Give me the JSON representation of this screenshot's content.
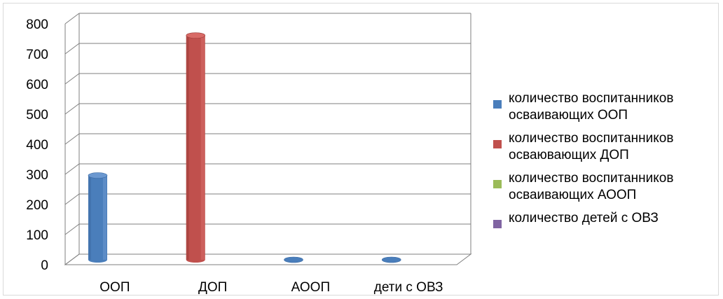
{
  "chart_data": {
    "type": "bar",
    "categories": [
      "ООП",
      "ДОП",
      "АООП",
      "дети с ОВЗ"
    ],
    "series": [
      {
        "name": "количество воспитанников\nосваивающих ООП",
        "color": "#4a7ebb",
        "values": [
          280,
          0,
          0,
          0
        ]
      },
      {
        "name": "количество воспитанников\nосваювающих ДОП",
        "color": "#c0504d",
        "values": [
          0,
          745,
          0,
          0
        ]
      },
      {
        "name": "количество воспитанников\nосваивающих АООП",
        "color": "#9bbb59",
        "values": [
          0,
          0,
          0,
          0
        ]
      },
      {
        "name": "количество детей с ОВЗ",
        "color": "#8064a2",
        "values": [
          0,
          0,
          0,
          0
        ]
      }
    ],
    "y_ticks": [
      "0",
      "100",
      "200",
      "300",
      "400",
      "500",
      "600",
      "700",
      "800"
    ],
    "ylim": [
      0,
      800
    ],
    "grid": true,
    "legend_position": "right"
  }
}
